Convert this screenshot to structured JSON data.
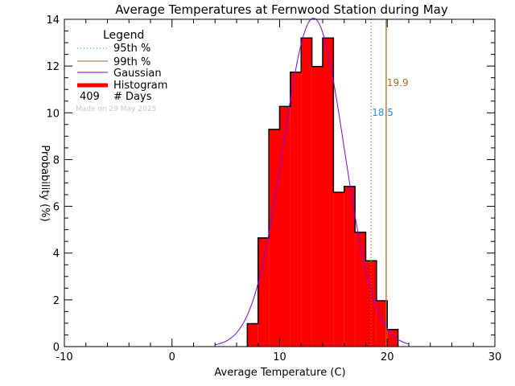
{
  "chart_data": {
    "type": "bar",
    "title": "Average Temperatures at Fernwood Station during May",
    "xlabel": "Average Temperature (C)",
    "ylabel": "Probability (%)",
    "xlim": [
      -10,
      30
    ],
    "ylim": [
      0,
      14
    ],
    "xticks": [
      -10,
      0,
      10,
      20,
      30
    ],
    "yticks": [
      0,
      2,
      4,
      6,
      8,
      10,
      12,
      14
    ],
    "bin_edges": [
      7,
      8,
      9,
      10,
      11,
      12,
      13,
      14,
      15,
      16,
      17,
      18,
      19,
      20,
      21
    ],
    "values": [
      0.98,
      4.65,
      9.29,
      10.27,
      11.74,
      13.2,
      11.98,
      13.2,
      6.6,
      6.85,
      4.89,
      3.67,
      1.96,
      0.73
    ],
    "gaussian": {
      "mean": 13.15,
      "sigma": 2.84,
      "range": [
        4,
        22
      ]
    },
    "percentiles": [
      {
        "name": "95th %",
        "value": 18.5,
        "label": "18.5",
        "label_color": "#1e90ff",
        "line_color": "#b8691e",
        "style": "dotted"
      },
      {
        "name": "99th %",
        "value": 19.9,
        "label": "19.9",
        "label_color": "#b8691e",
        "line_color": "#b8691e",
        "style": "solid"
      }
    ],
    "legend": {
      "title": "Legend",
      "items": [
        {
          "label": "95th %",
          "color": "#1e90ff",
          "style": "dotted"
        },
        {
          "label": "99th %",
          "color": "#a0602a",
          "style": "solid"
        },
        {
          "label": "Gaussian",
          "color": "#8000ff",
          "style": "solid"
        },
        {
          "label": "Histogram",
          "color": "#ff0000",
          "style": "thick"
        }
      ],
      "days_count": "409",
      "days_label": "# Days",
      "placement": "top-left"
    },
    "annotation": "Made on 29 May 2025",
    "colors": {
      "histogram": "#ff0000",
      "gaussian": "#8000ff"
    }
  }
}
